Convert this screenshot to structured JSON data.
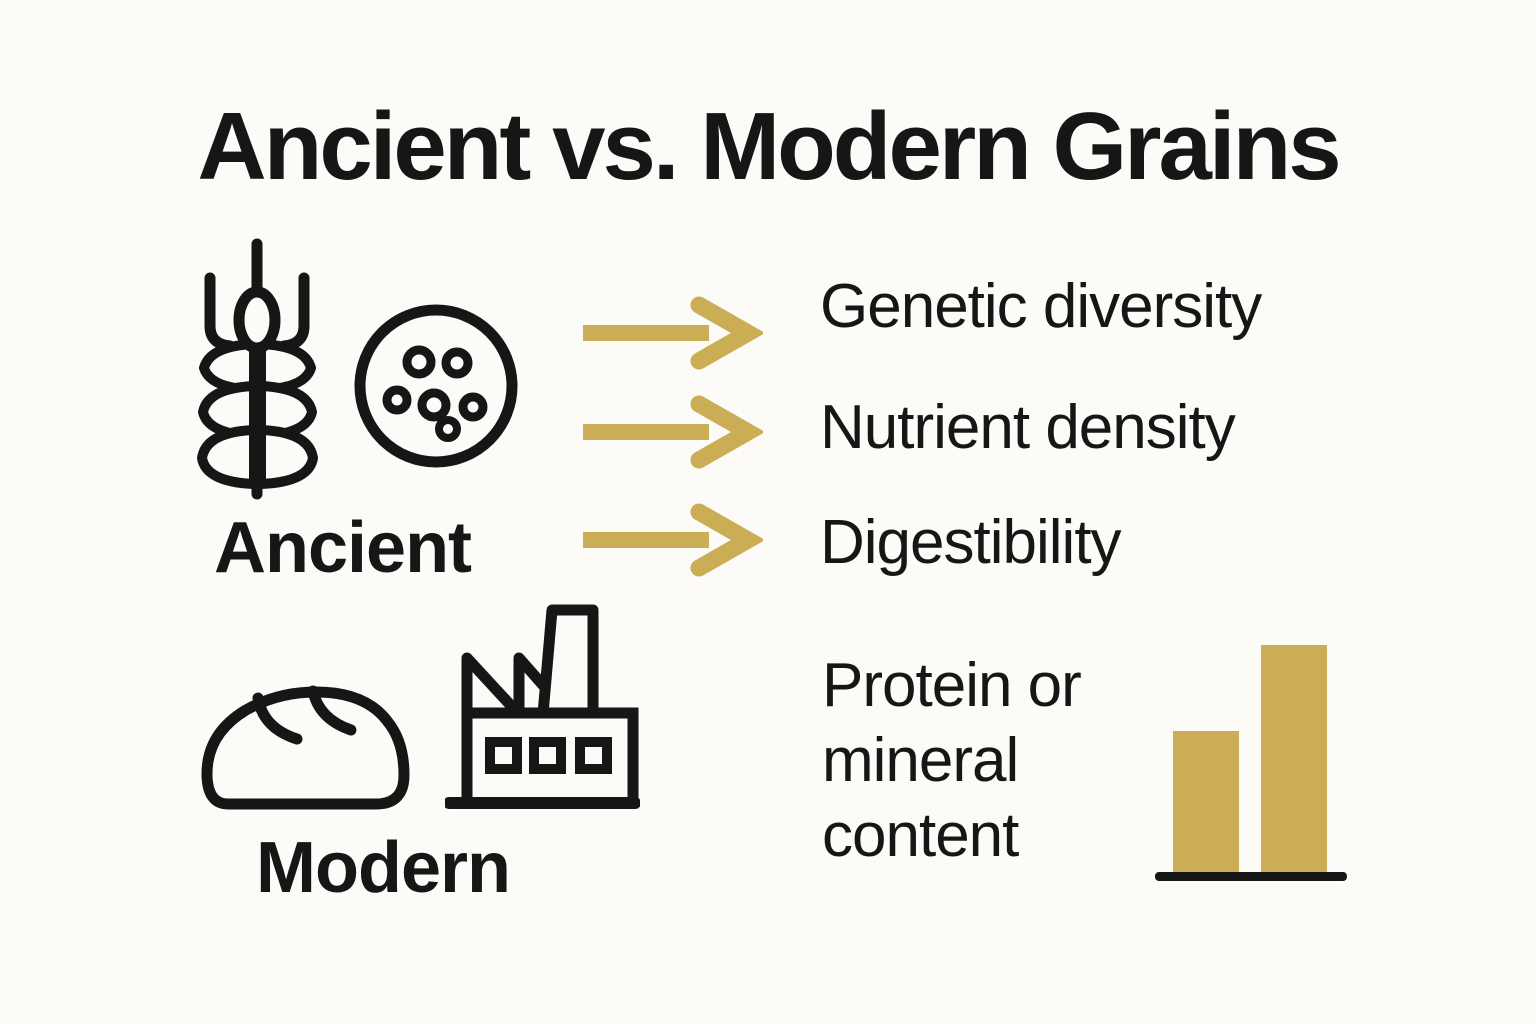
{
  "title": "Ancient vs. Modern Grains",
  "colors": {
    "background": "#FCFBF7",
    "ink": "#161616",
    "gold": "#CBAD55"
  },
  "groups": {
    "ancient": {
      "label": "Ancient",
      "icons": [
        "wheat-ear-icon",
        "grain-kernels-icon"
      ]
    },
    "modern": {
      "label": "Modern",
      "icons": [
        "bread-loaf-icon",
        "factory-icon"
      ]
    }
  },
  "benefits": [
    {
      "label": "Genetic diversity"
    },
    {
      "label": "Nutrient density"
    },
    {
      "label": "Digestibility"
    }
  ],
  "arrow": {
    "icon": "right-arrow-icon",
    "color": "#CBAD55",
    "count": 3
  },
  "chart_data": {
    "type": "bar",
    "title": "Protein or mineral content",
    "title_lines": [
      "Protein or",
      "mineral",
      "content"
    ],
    "categories": [
      "left-bar",
      "right-bar"
    ],
    "values": [
      62,
      100
    ],
    "value_unit": "relative-percent-of-tallest-bar",
    "bar_color": "#CBAD55",
    "baseline_color": "#161616",
    "axis_labels_visible": false,
    "grid": false,
    "legend": false
  }
}
